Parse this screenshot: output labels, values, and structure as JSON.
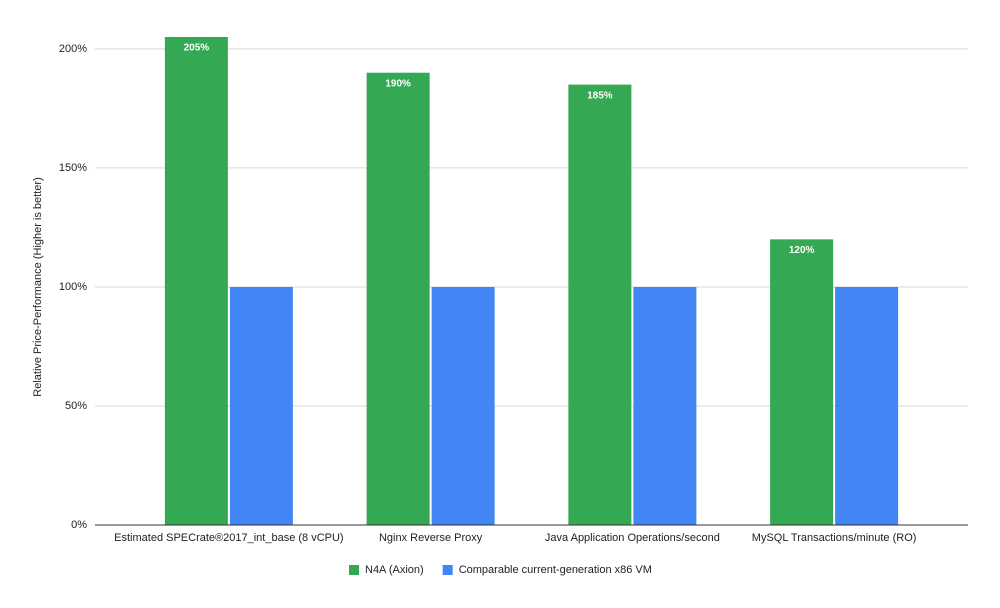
{
  "chart_data": {
    "type": "bar",
    "y_label": "Relative Price-Performance (Higher is better)",
    "categories": [
      "Estimated SPECrate®2017_int_base (8 vCPU)",
      "Nginx Reverse Proxy",
      "Java Application Operations/second",
      "MySQL Transactions/minute (RO)"
    ],
    "series": [
      {
        "name": "N4A (Axion)",
        "color": "#34a853",
        "values": [
          205,
          190,
          185,
          120
        ],
        "value_labels": [
          "205%",
          "190%",
          "185%",
          "120%"
        ]
      },
      {
        "name": "Comparable current-generation x86 VM",
        "color": "#4285f4",
        "values": [
          100,
          100,
          100,
          100
        ]
      }
    ],
    "ylim": [
      0,
      205
    ],
    "yticks": [
      {
        "value": 0,
        "label": "0%"
      },
      {
        "value": 50,
        "label": "50%"
      },
      {
        "value": 100,
        "label": "100%"
      },
      {
        "value": 150,
        "label": "150%"
      },
      {
        "value": 200,
        "label": "200%"
      }
    ],
    "grid": true,
    "legend": "bottom"
  }
}
